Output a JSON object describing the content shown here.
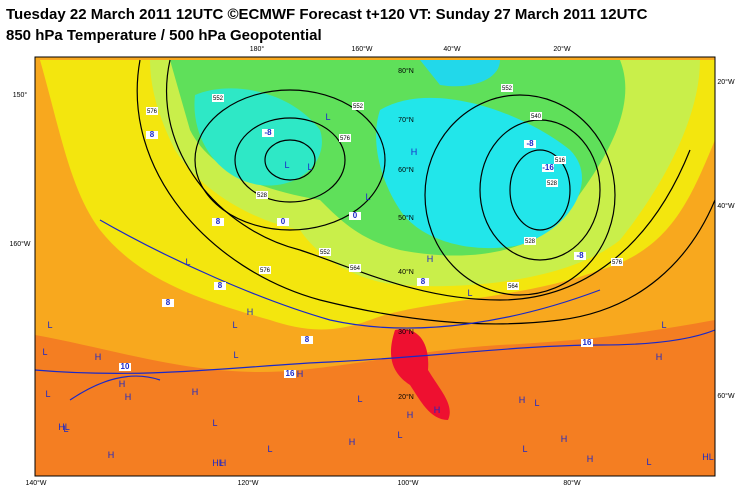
{
  "header": {
    "line1": "Tuesday 22 March 2011 12UTC ©ECMWF Forecast t+120 VT: Sunday 27 March 2011 12UTC",
    "line2": "850 hPa Temperature / 500 hPa Geopotential"
  },
  "map": {
    "graticule_labels": [
      "180°",
      "160°W",
      "40°W",
      "20°W",
      "150°",
      "20°W",
      "160°W",
      "40°W",
      "60°W",
      "140°W",
      "120°W",
      "100°W",
      "80°W",
      "80°N",
      "70°N",
      "60°N",
      "50°N",
      "40°N",
      "30°N",
      "20°N"
    ],
    "temperature_labels": [
      "8",
      "0",
      "-8",
      "-8",
      "8",
      "8",
      "8",
      "16",
      "16",
      "8",
      "-16",
      "-8",
      "0",
      "8",
      "10"
    ],
    "geopotential_labels": [
      "576",
      "552",
      "528",
      "576",
      "552",
      "528",
      "516",
      "540",
      "564",
      "576",
      "552",
      "528",
      "576",
      "564",
      "552"
    ],
    "pressure_centers": [
      "L",
      "L",
      "L",
      "H",
      "L",
      "L",
      "H",
      "L",
      "L",
      "H",
      "L",
      "H",
      "L",
      "H",
      "H",
      "L",
      "H",
      "L",
      "H",
      "L",
      "H",
      "L",
      "H",
      "H",
      "L",
      "L",
      "H",
      "H",
      "L",
      "H",
      "L",
      "HL",
      "L",
      "H",
      "HL",
      "L",
      "H",
      "H",
      "L",
      "HL"
    ]
  }
}
